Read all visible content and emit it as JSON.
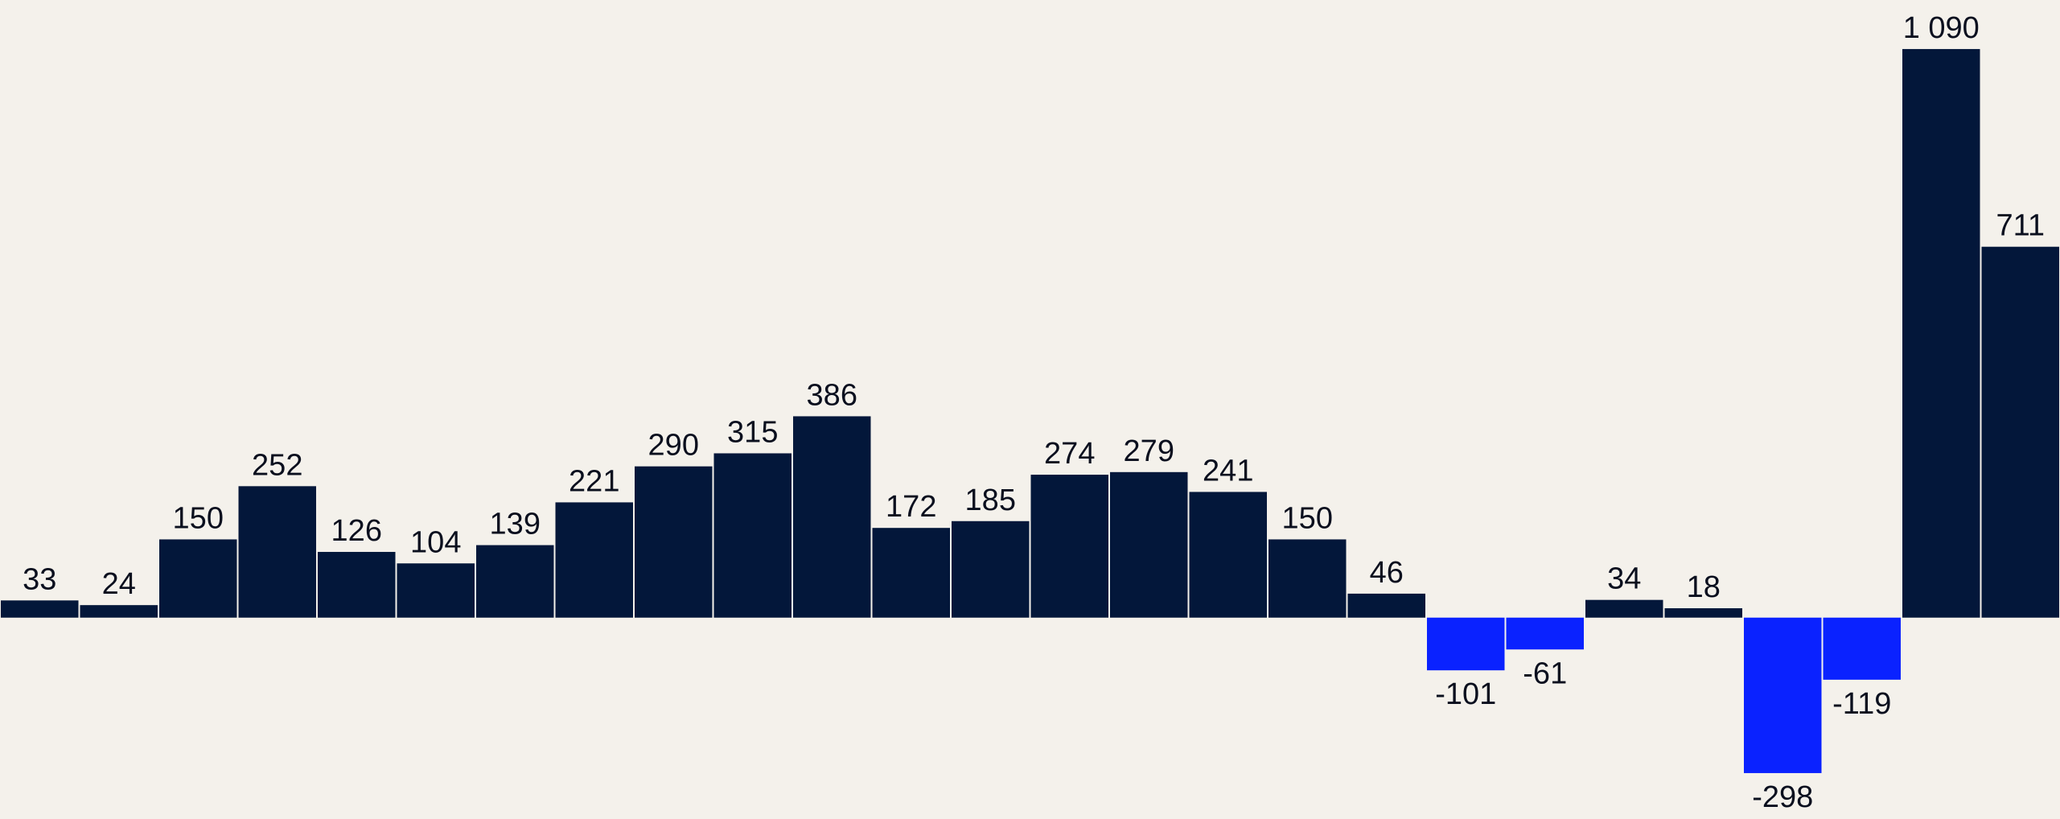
{
  "chart_data": {
    "type": "bar",
    "values": [
      33,
      24,
      150,
      252,
      126,
      104,
      139,
      221,
      290,
      315,
      386,
      172,
      185,
      274,
      279,
      241,
      150,
      46,
      -101,
      -61,
      34,
      18,
      -298,
      -119,
      1090,
      711
    ],
    "labels": [
      "33",
      "24",
      "150",
      "252",
      "126",
      "104",
      "139",
      "221",
      "290",
      "315",
      "386",
      "172",
      "185",
      "274",
      "279",
      "241",
      "150",
      "46",
      "-101",
      "-61",
      "34",
      "18",
      "-298",
      "-119",
      "1 090",
      "711"
    ],
    "ylim": [
      -386,
      1184
    ],
    "grid": false,
    "colors": {
      "positive": "#03173a",
      "negative": "#0a22ff",
      "background": "#f4f1eb",
      "label": "#0a0f1e"
    }
  }
}
